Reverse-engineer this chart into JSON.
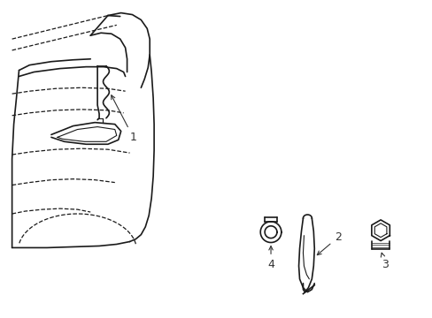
{
  "bg_color": "#ffffff",
  "line_color": "#1a1a1a",
  "label_color": "#333333",
  "fig_width": 4.89,
  "fig_height": 3.6,
  "dpi": 100
}
